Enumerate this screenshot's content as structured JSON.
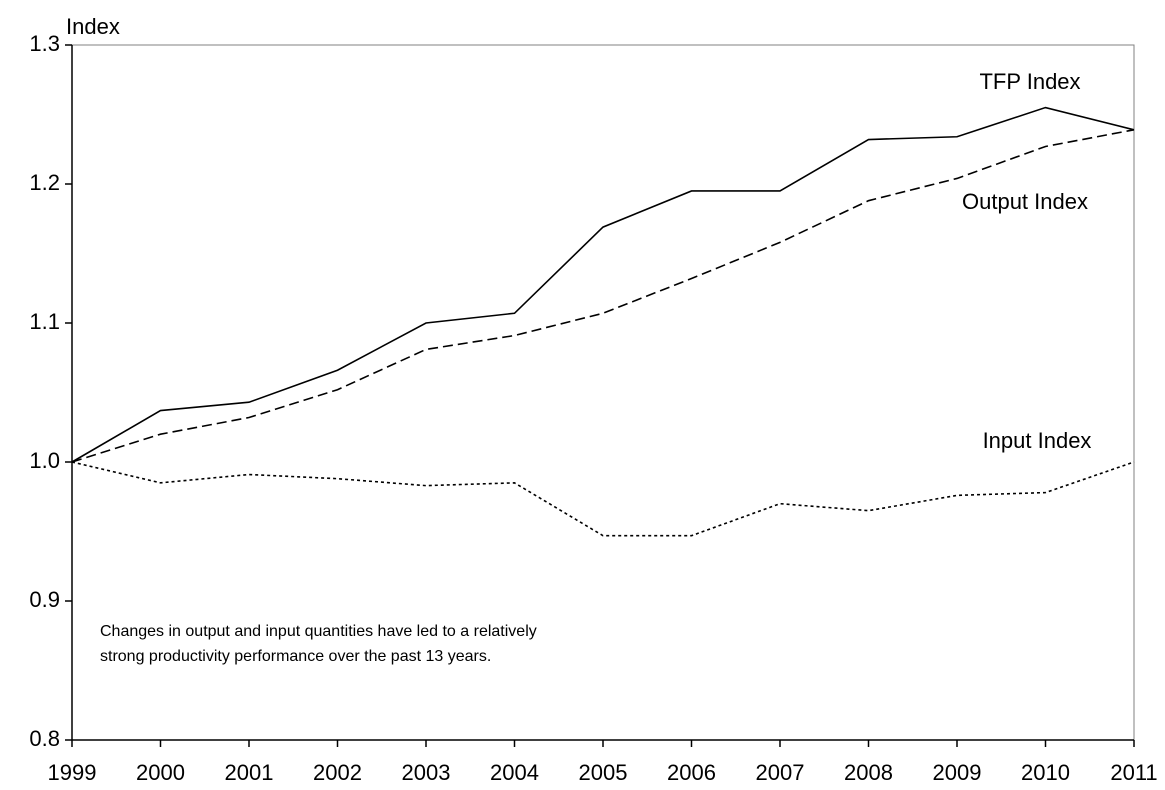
{
  "chart_data": {
    "type": "line",
    "y_label": "Index",
    "annotation": [
      "Changes in output and input quantities have led to a relatively",
      "strong productivity performance over the past 13 years."
    ],
    "x": [
      1999,
      2000,
      2001,
      2002,
      2003,
      2004,
      2005,
      2006,
      2007,
      2008,
      2009,
      2010,
      2011
    ],
    "xlim": [
      1999,
      2011
    ],
    "xticks": [
      1999,
      2000,
      2001,
      2002,
      2003,
      2004,
      2005,
      2006,
      2007,
      2008,
      2009,
      2010,
      2011
    ],
    "ylim": [
      0.8,
      1.3
    ],
    "yticks": [
      0.8,
      0.9,
      {
        "value": 1,
        "label": "1.0"
      },
      1.1,
      1.2,
      1.3
    ],
    "grid": false,
    "series": [
      {
        "name": "TFP Index",
        "color": "#000000",
        "line_style": "solid",
        "values": [
          1.0,
          1.037,
          1.043,
          1.066,
          1.1,
          1.107,
          1.169,
          1.195,
          1.195,
          1.232,
          1.234,
          1.255,
          1.239
        ]
      },
      {
        "name": "Output Index",
        "color": "#000000",
        "line_style": "dashed",
        "values": [
          1.0,
          1.02,
          1.032,
          1.052,
          1.081,
          1.091,
          1.107,
          1.132,
          1.158,
          1.188,
          1.204,
          1.227,
          1.239
        ]
      },
      {
        "name": "Input Index",
        "color": "#000000",
        "line_style": "dotted",
        "values": [
          1.0,
          0.985,
          0.991,
          0.988,
          0.983,
          0.985,
          0.947,
          0.947,
          0.97,
          0.965,
          0.976,
          0.978,
          1.0
        ]
      }
    ]
  }
}
